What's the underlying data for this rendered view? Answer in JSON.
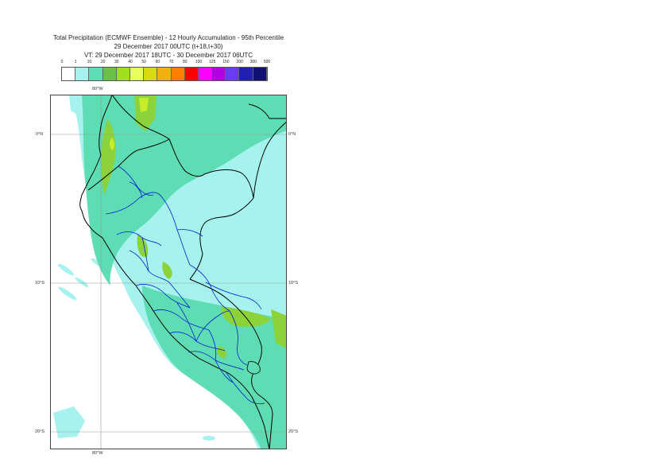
{
  "header": {
    "title_line1": "Total Precipitation (ECMWF Ensemble) - 12 Hourly Accumulation - 95th Percentile",
    "title_line2": "29 December 2017 00UTC (t+18,t+30)",
    "title_line3": "VT: 29 December 2017 18UTC - 30 December 2017 06UTC"
  },
  "legend": {
    "labels": [
      "0",
      "1",
      "10",
      "20",
      "30",
      "40",
      "50",
      "60",
      "70",
      "80",
      "100",
      "125",
      "150",
      "200",
      "300",
      "500"
    ],
    "colors": [
      "#ffffff",
      "#a5f2ee",
      "#5edcb3",
      "#6cc04a",
      "#a0e01e",
      "#e8ff60",
      "#d9d910",
      "#f0b010",
      "#ff8000",
      "#ff0000",
      "#ff00ff",
      "#b000e0",
      "#6a3cf0",
      "#2020b0",
      "#101070"
    ]
  },
  "map": {
    "lon_label_top": "80°W",
    "lon_label_bottom": "80°W",
    "lat_labels_left": [
      "0°N",
      "10°S",
      "20°S"
    ],
    "lat_labels_right": [
      "0°N",
      "10°S",
      "20°S"
    ]
  }
}
